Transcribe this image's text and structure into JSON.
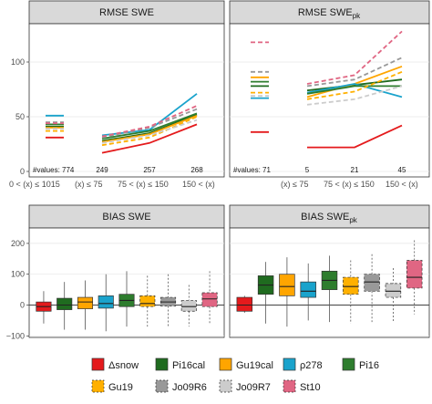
{
  "colors": {
    "snow": "#e41a1c",
    "pi16cal": "#1f6b1f",
    "gu19cal": "#ffa500",
    "rho278": "#1aa3cc",
    "pi16": "#2e7d2e",
    "gu19": "#ffb000",
    "jo09r6": "#999999",
    "jo09r7": "#cccccc",
    "st10": "#e06683"
  },
  "panels": {
    "rmse_swe": {
      "title": "RMSE SWE"
    },
    "rmse_swe_pk": {
      "title": "RMSE SWE",
      "title_sub": "pk"
    },
    "bias_swe": {
      "title": "BIAS SWE"
    },
    "bias_swe_pk": {
      "title": "BIAS SWE",
      "title_sub": "pk"
    }
  },
  "x_categories": [
    "0 < (x) ≤ 1015",
    "(x) ≤ 75",
    "75 < (x) ≤ 150",
    "150 < (x)"
  ],
  "rmse_axis": {
    "ticks": [
      "0",
      "50",
      "100"
    ],
    "ylim": [
      -5,
      135
    ]
  },
  "bias_axis": {
    "ticks": [
      "−100",
      "0",
      "100",
      "200"
    ],
    "ylim": [
      -105,
      250
    ]
  },
  "counts_left": {
    "prefix": "#values: 774",
    "c2": "249",
    "c3": "257",
    "c4": "268"
  },
  "counts_right": {
    "prefix": "#values: 71",
    "c2": "5",
    "c3": "21",
    "c4": "45"
  },
  "legend": [
    {
      "key": "snow",
      "label": "Δsnow",
      "dashed": false
    },
    {
      "key": "pi16cal",
      "label": "Pi16cal",
      "dashed": false
    },
    {
      "key": "gu19cal",
      "label": "Gu19cal",
      "dashed": false
    },
    {
      "key": "rho278",
      "label": "ρ278",
      "dashed": false
    },
    {
      "key": "pi16",
      "label": "Pi16",
      "dashed": false
    },
    {
      "key": "gu19",
      "label": "Gu19",
      "dashed": true
    },
    {
      "key": "jo09r6",
      "label": "Jo09R6",
      "dashed": true
    },
    {
      "key": "jo09r7",
      "label": "Jo09R7",
      "dashed": true
    },
    {
      "key": "st10",
      "label": "St10",
      "dashed": true
    }
  ],
  "chart_data": [
    {
      "type": "line",
      "panel": "rmse_swe",
      "title": "RMSE SWE",
      "categories": [
        "0 < (x) ≤ 1015",
        "(x) ≤ 75",
        "75 < (x) ≤ 150",
        "150 < (x)"
      ],
      "ylim": [
        -5,
        135
      ],
      "series": [
        {
          "name": "Δsnow",
          "key": "snow",
          "dashed": false,
          "values": [
            31,
            17,
            26,
            43
          ]
        },
        {
          "name": "Pi16cal",
          "key": "pi16cal",
          "dashed": false,
          "values": [
            41,
            28,
            35,
            52
          ]
        },
        {
          "name": "Gu19cal",
          "key": "gu19cal",
          "dashed": false,
          "values": [
            40,
            27,
            34,
            51
          ]
        },
        {
          "name": "ρ278",
          "key": "rho278",
          "dashed": false,
          "values": [
            51,
            33,
            38,
            71
          ]
        },
        {
          "name": "Pi16",
          "key": "pi16",
          "dashed": false,
          "values": [
            43,
            30,
            37,
            53
          ]
        },
        {
          "name": "Gu19",
          "key": "gu19",
          "dashed": true,
          "values": [
            37,
            24,
            31,
            50
          ]
        },
        {
          "name": "Jo09R6",
          "key": "jo09r6",
          "dashed": true,
          "values": [
            45,
            31,
            40,
            57
          ]
        },
        {
          "name": "Jo09R7",
          "key": "jo09r7",
          "dashed": true,
          "values": [
            39,
            26,
            33,
            47
          ]
        },
        {
          "name": "St10",
          "key": "st10",
          "dashed": true,
          "values": [
            44,
            32,
            41,
            60
          ]
        }
      ]
    },
    {
      "type": "line",
      "panel": "rmse_swe_pk",
      "title": "RMSE SWE pk",
      "categories": [
        "0 < (x) ≤ 1015",
        "(x) ≤ 75",
        "75 < (x) ≤ 150",
        "150 < (x)"
      ],
      "ylim": [
        -5,
        135
      ],
      "series": [
        {
          "name": "Δsnow",
          "key": "snow",
          "dashed": false,
          "values": [
            36,
            22,
            22,
            42
          ]
        },
        {
          "name": "Pi16cal",
          "key": "pi16cal",
          "dashed": false,
          "values": [
            78,
            74,
            79,
            84
          ]
        },
        {
          "name": "Gu19cal",
          "key": "gu19cal",
          "dashed": false,
          "values": [
            86,
            68,
            80,
            96
          ]
        },
        {
          "name": "ρ278",
          "key": "rho278",
          "dashed": false,
          "values": [
            67,
            72,
            80,
            68
          ]
        },
        {
          "name": "Pi16",
          "key": "pi16",
          "dashed": false,
          "values": [
            82,
            71,
            78,
            78
          ]
        },
        {
          "name": "Gu19",
          "key": "gu19",
          "dashed": true,
          "values": [
            72,
            66,
            73,
            91
          ]
        },
        {
          "name": "Jo09R6",
          "key": "jo09r6",
          "dashed": true,
          "values": [
            91,
            78,
            84,
            104
          ]
        },
        {
          "name": "Jo09R7",
          "key": "jo09r7",
          "dashed": true,
          "values": [
            69,
            61,
            66,
            78
          ]
        },
        {
          "name": "St10",
          "key": "st10",
          "dashed": true,
          "values": [
            118,
            80,
            88,
            128
          ]
        }
      ]
    },
    {
      "type": "box",
      "panel": "bias_swe",
      "title": "BIAS SWE",
      "ylim": [
        -105,
        250
      ],
      "boxes": [
        {
          "name": "Δsnow",
          "key": "snow",
          "dashed": false,
          "whisker_low": -60,
          "q1": -20,
          "median": -5,
          "q3": 10,
          "whisker_high": 45
        },
        {
          "name": "Pi16cal",
          "key": "pi16cal",
          "dashed": false,
          "whisker_low": -80,
          "q1": -15,
          "median": 0,
          "q3": 22,
          "whisker_high": 75
        },
        {
          "name": "Gu19cal",
          "key": "gu19cal",
          "dashed": false,
          "whisker_low": -80,
          "q1": -12,
          "median": 10,
          "q3": 25,
          "whisker_high": 80
        },
        {
          "name": "ρ278",
          "key": "rho278",
          "dashed": false,
          "whisker_low": -85,
          "q1": -10,
          "median": 5,
          "q3": 30,
          "whisker_high": 100
        },
        {
          "name": "Pi16",
          "key": "pi16",
          "dashed": false,
          "whisker_low": -70,
          "q1": -5,
          "median": 15,
          "q3": 35,
          "whisker_high": 110
        },
        {
          "name": "Gu19",
          "key": "gu19",
          "dashed": true,
          "whisker_low": -70,
          "q1": -5,
          "median": 5,
          "q3": 30,
          "whisker_high": 95
        },
        {
          "name": "Jo09R6",
          "key": "jo09r6",
          "dashed": true,
          "whisker_low": -70,
          "q1": -3,
          "median": 10,
          "q3": 25,
          "whisker_high": 100
        },
        {
          "name": "Jo09R7",
          "key": "jo09r7",
          "dashed": true,
          "whisker_low": -70,
          "q1": -20,
          "median": -5,
          "q3": 15,
          "whisker_high": 65
        },
        {
          "name": "St10",
          "key": "st10",
          "dashed": true,
          "whisker_low": -60,
          "q1": -5,
          "median": 20,
          "q3": 40,
          "whisker_high": 110
        }
      ]
    },
    {
      "type": "box",
      "panel": "bias_swe_pk",
      "title": "BIAS SWE pk",
      "ylim": [
        -105,
        250
      ],
      "boxes": [
        {
          "name": "Δsnow",
          "key": "snow",
          "dashed": false,
          "whisker_low": -25,
          "q1": -20,
          "median": 0,
          "q3": 25,
          "whisker_high": 30
        },
        {
          "name": "Pi16cal",
          "key": "pi16cal",
          "dashed": false,
          "whisker_low": -60,
          "q1": 35,
          "median": 65,
          "q3": 95,
          "whisker_high": 140
        },
        {
          "name": "Gu19cal",
          "key": "gu19cal",
          "dashed": false,
          "whisker_low": -70,
          "q1": 30,
          "median": 60,
          "q3": 100,
          "whisker_high": 155
        },
        {
          "name": "ρ278",
          "key": "rho278",
          "dashed": false,
          "whisker_low": -50,
          "q1": 25,
          "median": 45,
          "q3": 75,
          "whisker_high": 135
        },
        {
          "name": "Pi16",
          "key": "pi16",
          "dashed": false,
          "whisker_low": -55,
          "q1": 50,
          "median": 80,
          "q3": 110,
          "whisker_high": 160
        },
        {
          "name": "Gu19",
          "key": "gu19",
          "dashed": true,
          "whisker_low": -60,
          "q1": 35,
          "median": 60,
          "q3": 90,
          "whisker_high": 145
        },
        {
          "name": "Jo09R6",
          "key": "jo09r6",
          "dashed": true,
          "whisker_low": -55,
          "q1": 45,
          "median": 75,
          "q3": 100,
          "whisker_high": 165
        },
        {
          "name": "Jo09R7",
          "key": "jo09r7",
          "dashed": true,
          "whisker_low": -55,
          "q1": 25,
          "median": 45,
          "q3": 70,
          "whisker_high": 120
        },
        {
          "name": "St10",
          "key": "st10",
          "dashed": true,
          "whisker_low": -30,
          "q1": 55,
          "median": 90,
          "q3": 145,
          "whisker_high": 210
        }
      ]
    }
  ]
}
